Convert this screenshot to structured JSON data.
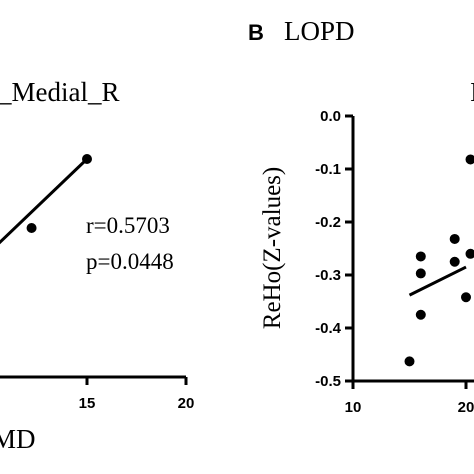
{
  "chart_data": [
    {
      "type": "scatter",
      "title": "_Medial_R",
      "xlabel": "MD",
      "ylabel": "",
      "x_ticks": [
        "15",
        "20"
      ],
      "xlim": [
        9.5,
        20
      ],
      "points": [
        {
          "x": 12.2,
          "y": 0.0
        },
        {
          "x": 15.0,
          "y": 0.55
        }
      ],
      "fit_line": {
        "x0": 9.5,
        "y0": -0.28,
        "x1": 15.0,
        "y1": 0.55
      },
      "annotations": [
        "r=0.5703",
        "p=0.0448"
      ],
      "grid": false,
      "legend": "none"
    },
    {
      "type": "scatter",
      "panel_label": "B",
      "title": "LOPD",
      "title_fragment": "I",
      "ylabel": "ReHo(Z-values)",
      "xlabel": "",
      "y_ticks": [
        "0.0",
        "-0.1",
        "-0.2",
        "-0.3",
        "-0.4",
        "-0.5"
      ],
      "x_ticks": [
        "10",
        "20"
      ],
      "xlim": [
        10,
        20
      ],
      "ylim": [
        -0.5,
        0.0
      ],
      "points": [
        {
          "x": 15.0,
          "y": -0.463
        },
        {
          "x": 16.0,
          "y": -0.265
        },
        {
          "x": 16.0,
          "y": -0.297
        },
        {
          "x": 16.0,
          "y": -0.375
        },
        {
          "x": 19.0,
          "y": -0.232
        },
        {
          "x": 19.0,
          "y": -0.275
        },
        {
          "x": 20.0,
          "y": -0.342
        },
        {
          "x": 20.4,
          "y": -0.082
        },
        {
          "x": 20.4,
          "y": -0.26
        }
      ],
      "fit_line": {
        "x0": 15.0,
        "y0": -0.338,
        "x1": 20.0,
        "y1": -0.285
      },
      "grid": false,
      "legend": "none"
    }
  ]
}
